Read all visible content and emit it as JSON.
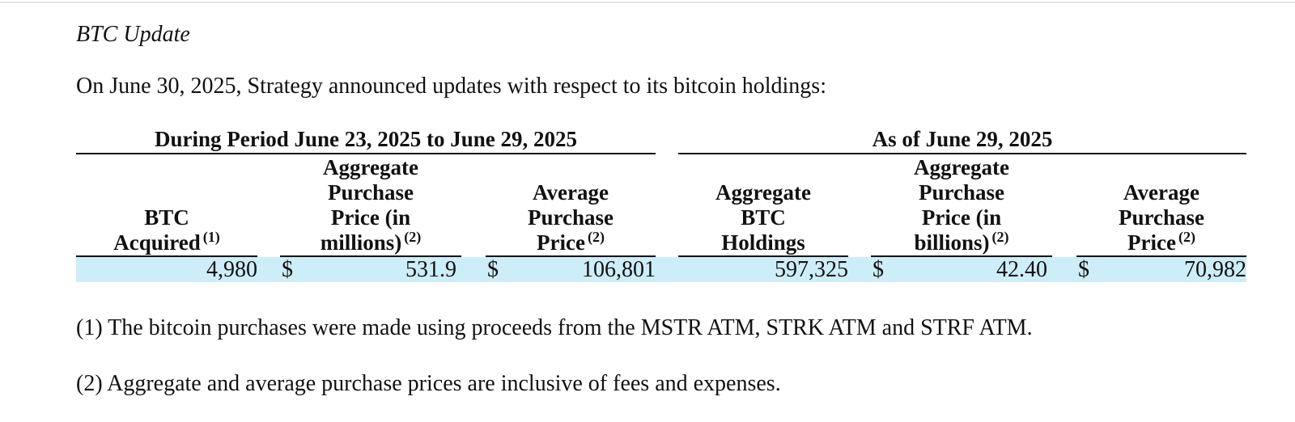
{
  "section_title": "BTC Update",
  "intro": "On June 30, 2025, Strategy announced updates with respect to its bitcoin holdings:",
  "table": {
    "period_headers": [
      "During Period June 23, 2025 to June 29, 2025",
      "As of June 29, 2025"
    ],
    "columns": [
      {
        "lines": [
          "BTC",
          "Acquired"
        ],
        "footnote": "(1)"
      },
      {
        "lines": [
          "Aggregate",
          "Purchase",
          "Price (in",
          "millions)"
        ],
        "footnote": "(2)"
      },
      {
        "lines": [
          "Average",
          "Purchase",
          "Price"
        ],
        "footnote": "(2)"
      },
      {
        "lines": [
          "Aggregate",
          "BTC",
          "Holdings"
        ],
        "footnote": ""
      },
      {
        "lines": [
          "Aggregate",
          "Purchase",
          "Price (in",
          "billions)"
        ],
        "footnote": "(2)"
      },
      {
        "lines": [
          "Average",
          "Purchase",
          "Price"
        ],
        "footnote": "(2)"
      }
    ],
    "row": {
      "btc_acquired": "4,980",
      "agg_purchase_price_millions": {
        "currency": "$",
        "value": "531.9"
      },
      "avg_purchase_price_period": {
        "currency": "$",
        "value": "106,801"
      },
      "agg_btc_holdings": "597,325",
      "agg_purchase_price_billions": {
        "currency": "$",
        "value": "42.40"
      },
      "avg_purchase_price_total": {
        "currency": "$",
        "value": "70,982"
      }
    },
    "highlight_color": "#cdeef9"
  },
  "footnotes": [
    "(1) The bitcoin purchases were made using proceeds from the MSTR ATM, STRK ATM and STRF ATM.",
    "(2) Aggregate and average purchase prices are inclusive of fees and expenses."
  ]
}
